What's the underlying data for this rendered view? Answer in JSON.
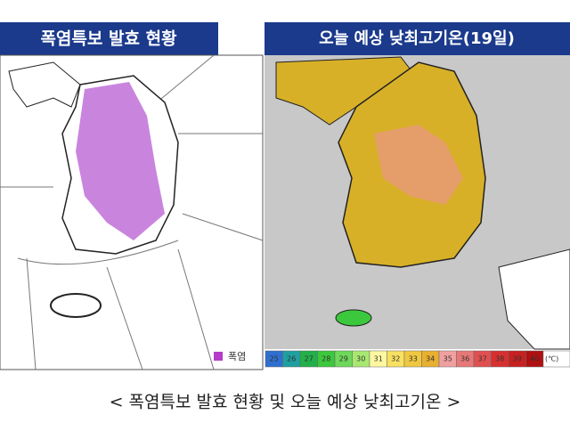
{
  "left_panel": {
    "title": "폭염특보 발효 현황",
    "legend": {
      "label": "폭염",
      "color": "#b43cc8"
    }
  },
  "right_panel": {
    "title": "오늘 예상 낮최고기온(19일)",
    "scale": {
      "labels": [
        "25",
        "26",
        "27",
        "28",
        "29",
        "30",
        "31",
        "32",
        "33",
        "34",
        "35",
        "36",
        "37",
        "38",
        "39",
        "40"
      ],
      "colors": [
        "#2f6fd0",
        "#1fa0a0",
        "#22b04a",
        "#3cc83c",
        "#6ed85a",
        "#a8e870",
        "#fff8a0",
        "#f8e060",
        "#f0c840",
        "#e8b030",
        "#f0a0a0",
        "#e87878",
        "#e05050",
        "#d83030",
        "#c82020",
        "#b01010"
      ],
      "unit": "(℃)"
    }
  },
  "caption": "< 폭염특보 발효 현황 및 오늘 예상 낮최고기온 >"
}
